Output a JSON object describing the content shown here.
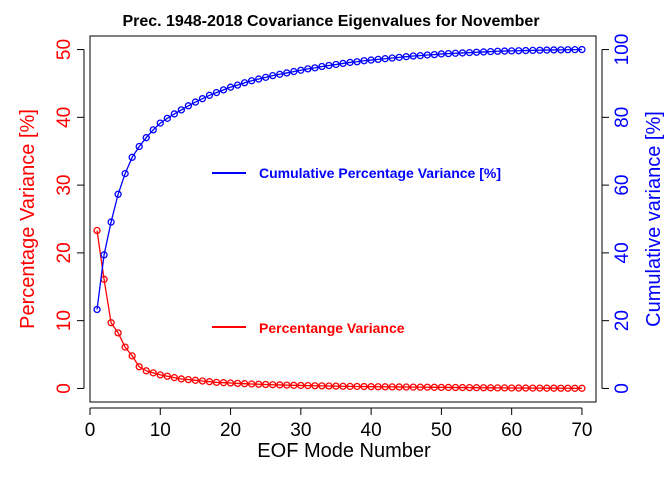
{
  "chart_data": {
    "type": "line",
    "title": "Prec. 1948-2018 Covariance Eigenvalues for November",
    "xlabel": "EOF Mode Number",
    "ylabel_left": "Percentage Variance [%]",
    "ylabel_right": "Cumulative variance [%]",
    "xlim": [
      0,
      72
    ],
    "ylim_left": [
      -2,
      52
    ],
    "ylim_right": [
      -4,
      104
    ],
    "x_ticks": [
      0,
      10,
      20,
      30,
      40,
      50,
      60,
      70
    ],
    "y_ticks_left": [
      0,
      10,
      20,
      30,
      40,
      50
    ],
    "y_ticks_right": [
      0,
      20,
      40,
      60,
      80,
      100
    ],
    "grid": false,
    "series": [
      {
        "name": "Percentange Variance",
        "axis": "left",
        "color": "#ff0000",
        "marker": "circle",
        "x": [
          1,
          2,
          3,
          4,
          5,
          6,
          7,
          8,
          9,
          10,
          11,
          12,
          13,
          14,
          15,
          16,
          17,
          18,
          19,
          20,
          21,
          22,
          23,
          24,
          25,
          26,
          27,
          28,
          29,
          30,
          31,
          32,
          33,
          34,
          35,
          36,
          37,
          38,
          39,
          40,
          41,
          42,
          43,
          44,
          45,
          46,
          47,
          48,
          49,
          50,
          51,
          52,
          53,
          54,
          55,
          56,
          57,
          58,
          59,
          60,
          61,
          62,
          63,
          64,
          65,
          66,
          67,
          68,
          69,
          70
        ],
        "values": [
          23.3,
          16.1,
          9.7,
          8.2,
          6.1,
          4.8,
          3.2,
          2.6,
          2.3,
          2.0,
          1.8,
          1.6,
          1.4,
          1.3,
          1.2,
          1.1,
          1.0,
          0.9,
          0.85,
          0.8,
          0.75,
          0.7,
          0.66,
          0.62,
          0.58,
          0.55,
          0.52,
          0.49,
          0.46,
          0.44,
          0.42,
          0.4,
          0.38,
          0.36,
          0.34,
          0.32,
          0.3,
          0.29,
          0.28,
          0.26,
          0.25,
          0.24,
          0.23,
          0.22,
          0.21,
          0.2,
          0.19,
          0.18,
          0.17,
          0.16,
          0.15,
          0.14,
          0.13,
          0.12,
          0.11,
          0.1,
          0.09,
          0.08,
          0.08,
          0.07,
          0.06,
          0.06,
          0.05,
          0.05,
          0.04,
          0.04,
          0.03,
          0.03,
          0.02,
          0.02
        ]
      },
      {
        "name": "Cumulative Percentage Variance [%]",
        "axis": "right",
        "color": "#0000ff",
        "marker": "circle",
        "x": [
          1,
          2,
          3,
          4,
          5,
          6,
          7,
          8,
          9,
          10,
          11,
          12,
          13,
          14,
          15,
          16,
          17,
          18,
          19,
          20,
          21,
          22,
          23,
          24,
          25,
          26,
          27,
          28,
          29,
          30,
          31,
          32,
          33,
          34,
          35,
          36,
          37,
          38,
          39,
          40,
          41,
          42,
          43,
          44,
          45,
          46,
          47,
          48,
          49,
          50,
          51,
          52,
          53,
          54,
          55,
          56,
          57,
          58,
          59,
          60,
          61,
          62,
          63,
          64,
          65,
          66,
          67,
          68,
          69,
          70
        ],
        "values": [
          23.3,
          39.4,
          49.1,
          57.3,
          63.4,
          68.2,
          71.4,
          74.0,
          76.3,
          78.3,
          79.7,
          81.0,
          82.2,
          83.4,
          84.5,
          85.5,
          86.5,
          87.3,
          88.1,
          88.9,
          89.5,
          90.2,
          90.8,
          91.3,
          91.8,
          92.3,
          92.7,
          93.1,
          93.5,
          93.9,
          94.3,
          94.6,
          95.0,
          95.3,
          95.6,
          95.9,
          96.2,
          96.4,
          96.7,
          96.9,
          97.1,
          97.3,
          97.5,
          97.7,
          97.9,
          98.1,
          98.2,
          98.4,
          98.5,
          98.7,
          98.8,
          98.9,
          99.0,
          99.1,
          99.2,
          99.3,
          99.4,
          99.5,
          99.55,
          99.6,
          99.65,
          99.7,
          99.75,
          99.8,
          99.85,
          99.88,
          99.91,
          99.94,
          99.97,
          100.0
        ]
      }
    ]
  }
}
